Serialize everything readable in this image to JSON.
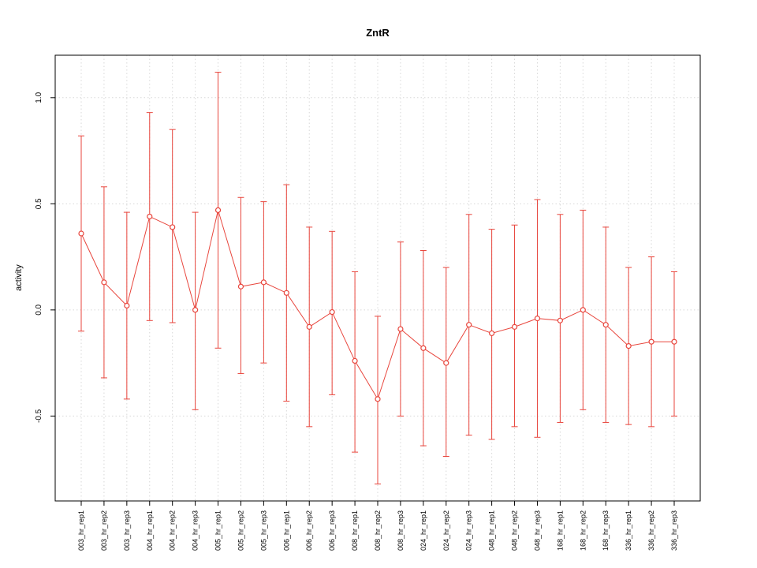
{
  "chart_data": {
    "type": "line",
    "title": "ZntR",
    "xlabel": "",
    "ylabel": "activity",
    "ylim": [
      -0.9,
      1.2
    ],
    "yticks": [
      -0.5,
      0.0,
      0.5,
      1.0
    ],
    "grid": true,
    "legend": "none",
    "line_color": "#e8453c",
    "grid_color": "#d8d8d8",
    "axis_color": "#000000",
    "categories": [
      "003_hr_rep1",
      "003_hr_rep2",
      "003_hr_rep3",
      "004_hr_rep1",
      "004_hr_rep2",
      "004_hr_rep3",
      "005_hr_rep1",
      "005_hr_rep2",
      "005_hr_rep3",
      "006_hr_rep1",
      "006_hr_rep2",
      "006_hr_rep3",
      "008_hr_rep1",
      "008_hr_rep2",
      "008_hr_rep3",
      "024_hr_rep1",
      "024_hr_rep2",
      "024_hr_rep3",
      "048_hr_rep1",
      "048_hr_rep2",
      "048_hr_rep3",
      "168_hr_rep1",
      "168_hr_rep2",
      "168_hr_rep3",
      "336_hr_rep1",
      "336_hr_rep2",
      "336_hr_rep3"
    ],
    "values": [
      0.36,
      0.13,
      0.02,
      0.44,
      0.39,
      0.0,
      0.47,
      0.11,
      0.13,
      0.08,
      -0.08,
      -0.01,
      -0.24,
      -0.42,
      -0.09,
      -0.18,
      -0.25,
      -0.07,
      -0.11,
      -0.08,
      -0.04,
      -0.05,
      0.0,
      -0.07,
      -0.17,
      -0.15,
      -0.15
    ],
    "upper": [
      0.82,
      0.58,
      0.46,
      0.93,
      0.85,
      0.46,
      1.12,
      0.53,
      0.51,
      0.59,
      0.39,
      0.37,
      0.18,
      -0.03,
      0.32,
      0.28,
      0.2,
      0.45,
      0.38,
      0.4,
      0.52,
      0.45,
      0.47,
      0.39,
      0.2,
      0.25,
      0.18
    ],
    "lower": [
      -0.1,
      -0.32,
      -0.42,
      -0.05,
      -0.06,
      -0.47,
      -0.18,
      -0.3,
      -0.25,
      -0.43,
      -0.55,
      -0.4,
      -0.67,
      -0.82,
      -0.5,
      -0.64,
      -0.69,
      -0.59,
      -0.61,
      -0.55,
      -0.6,
      -0.53,
      -0.47,
      -0.53,
      -0.54,
      -0.55,
      -0.5
    ]
  }
}
